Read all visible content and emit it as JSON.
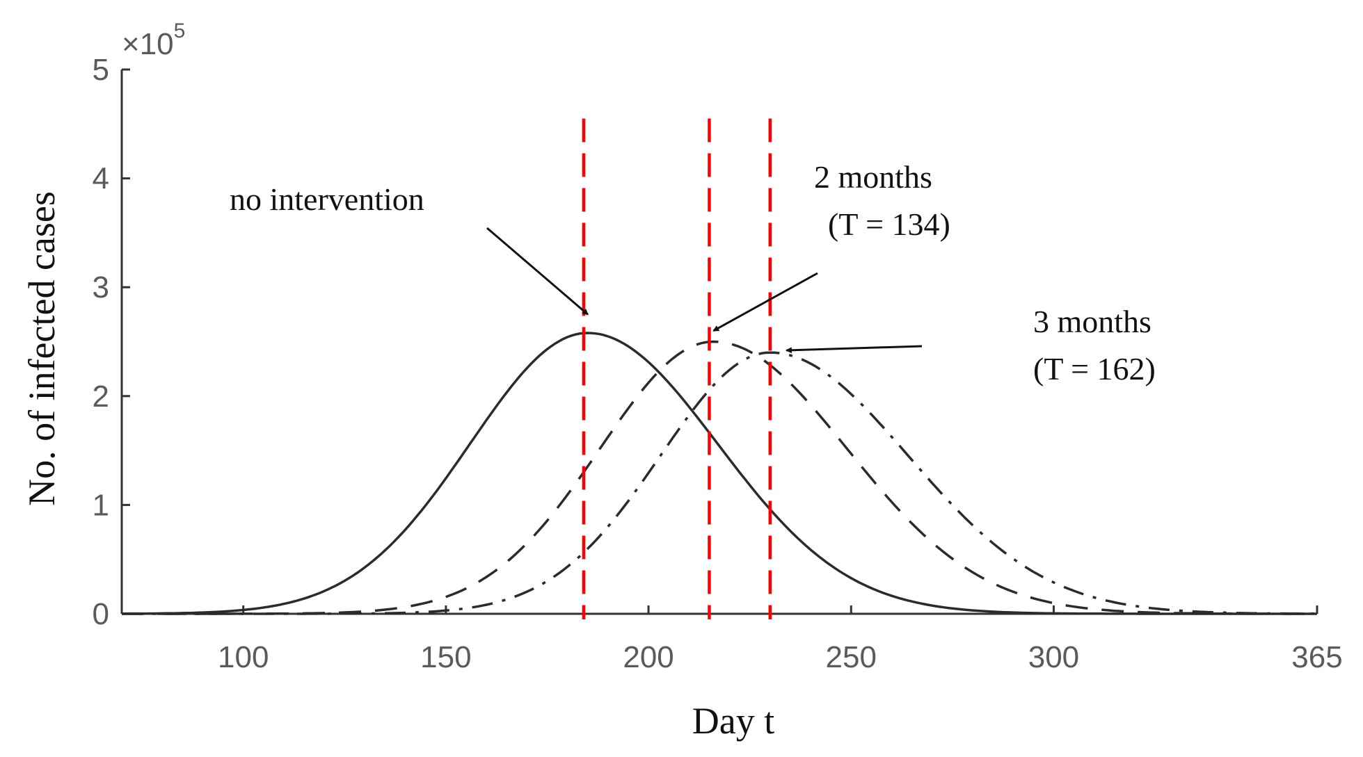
{
  "chart_data": {
    "type": "line",
    "title": "",
    "xlabel": "Day t",
    "ylabel": "No. of infected cases",
    "y_multiplier": {
      "base": "×10",
      "exponent": "5"
    },
    "xlim": [
      70,
      365
    ],
    "ylim": [
      0,
      5
    ],
    "x_ticks": [
      100,
      150,
      200,
      250,
      300,
      365
    ],
    "x_tick_labels": [
      "100",
      "150",
      "200",
      "250",
      "300",
      "365"
    ],
    "y_ticks": [
      0,
      1,
      2,
      3,
      4,
      5
    ],
    "y_tick_labels": [
      "0",
      "1",
      "2",
      "3",
      "4",
      "5"
    ],
    "grid": false,
    "series": [
      {
        "name": "no intervention",
        "style": "solid",
        "peak_day": 185,
        "peak_value": 2.58,
        "sigma_left": 29,
        "sigma_right": 32
      },
      {
        "name": "2 months (T = 134)",
        "style": "dashed",
        "peak_day": 216,
        "peak_value": 2.5,
        "sigma_left": 28,
        "sigma_right": 33
      },
      {
        "name": "3 months (T = 162)",
        "style": "dashdot",
        "peak_day": 230,
        "peak_value": 2.4,
        "sigma_left": 27,
        "sigma_right": 34
      }
    ],
    "vlines": [
      {
        "x": 184,
        "color": "#ff0000",
        "style": "dashed"
      },
      {
        "x": 215,
        "color": "#ff0000",
        "style": "dashed"
      },
      {
        "x": 230,
        "color": "#ff0000",
        "style": "dashed"
      }
    ],
    "annotations": [
      {
        "id": "no-intervention",
        "lines": [
          "no intervention"
        ],
        "points_to": [
          184,
          2.75
        ]
      },
      {
        "id": "two-months",
        "lines": [
          "2 months",
          "(T = 134)"
        ],
        "points_to": [
          215,
          2.6
        ]
      },
      {
        "id": "three-months",
        "lines": [
          "3 months",
          "(T = 162)"
        ],
        "points_to": [
          233,
          2.42
        ]
      }
    ]
  }
}
